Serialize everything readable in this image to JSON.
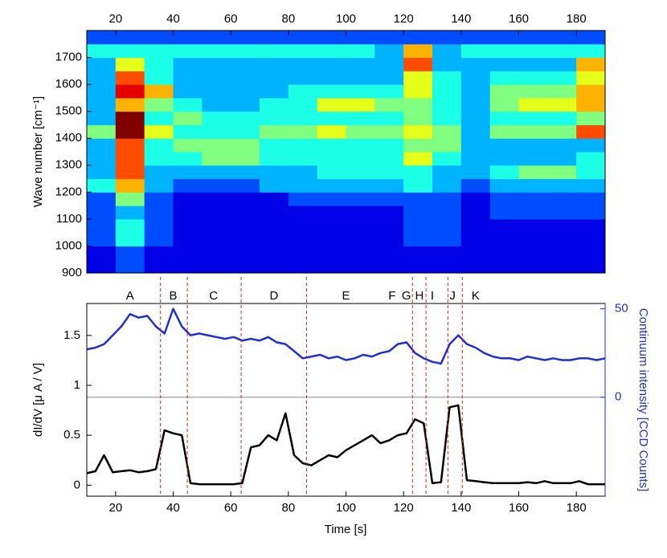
{
  "chart_data": [
    {
      "type": "heatmap",
      "ylabel": "Wave number [cm⁻¹]",
      "colormap": "jet",
      "zlim": [
        0,
        10
      ],
      "xlim": [
        10,
        190
      ],
      "ylim": [
        900,
        1800
      ],
      "xticks": [
        20,
        40,
        60,
        80,
        100,
        120,
        140,
        160,
        180
      ],
      "yticks": [
        900,
        1000,
        1100,
        1200,
        1300,
        1400,
        1500,
        1600,
        1700
      ],
      "xbins": [
        10,
        20,
        30,
        40,
        50,
        60,
        70,
        80,
        90,
        100,
        110,
        120,
        130,
        140,
        150,
        160,
        170,
        180,
        190
      ],
      "ybins": [
        900,
        950,
        1000,
        1050,
        1100,
        1150,
        1200,
        1250,
        1300,
        1350,
        1400,
        1450,
        1500,
        1550,
        1600,
        1650,
        1700,
        1750,
        1800
      ],
      "z": [
        [
          1,
          2,
          1,
          1,
          1,
          1,
          1,
          1,
          1,
          1,
          1,
          1,
          1,
          1,
          1,
          1,
          1,
          1
        ],
        [
          1,
          2,
          1,
          1,
          1,
          1,
          1,
          1,
          1,
          1,
          1,
          1,
          1,
          1,
          1,
          1,
          1,
          1
        ],
        [
          2,
          4,
          2,
          1,
          1,
          1,
          1,
          1,
          1,
          1,
          1,
          2,
          2,
          1,
          1,
          1,
          1,
          1
        ],
        [
          2,
          4,
          2,
          1,
          1,
          1,
          1,
          1,
          1,
          1,
          1,
          2,
          2,
          1,
          1,
          1,
          1,
          1
        ],
        [
          2,
          3,
          2,
          1,
          1,
          1,
          1,
          1,
          1,
          1,
          1,
          2,
          2,
          1,
          2,
          2,
          2,
          2
        ],
        [
          2,
          5,
          2,
          1,
          1,
          1,
          1,
          2,
          2,
          2,
          2,
          2,
          2,
          1,
          2,
          2,
          2,
          2
        ],
        [
          4,
          7,
          3,
          2,
          2,
          2,
          3,
          3,
          3,
          3,
          3,
          4,
          3,
          2,
          3,
          3,
          3,
          3
        ],
        [
          3,
          8,
          3,
          3,
          3,
          3,
          3,
          3,
          4,
          4,
          4,
          4,
          3,
          3,
          4,
          5,
          5,
          4
        ],
        [
          3,
          8,
          4,
          4,
          5,
          5,
          4,
          4,
          4,
          4,
          4,
          6,
          4,
          3,
          3,
          3,
          3,
          4
        ],
        [
          3,
          8,
          4,
          5,
          5,
          5,
          4,
          4,
          4,
          4,
          4,
          5,
          5,
          3,
          3,
          3,
          3,
          3
        ],
        [
          5,
          10,
          6,
          4,
          4,
          4,
          5,
          5,
          6,
          5,
          5,
          6,
          5,
          3,
          5,
          5,
          5,
          8
        ],
        [
          3,
          10,
          4,
          5,
          4,
          4,
          4,
          4,
          4,
          4,
          4,
          5,
          4,
          3,
          4,
          4,
          4,
          5
        ],
        [
          3,
          7,
          5,
          4,
          3,
          3,
          4,
          4,
          6,
          6,
          5,
          5,
          4,
          3,
          5,
          6,
          6,
          7
        ],
        [
          3,
          9,
          7,
          3,
          3,
          3,
          3,
          4,
          4,
          4,
          4,
          6,
          4,
          3,
          5,
          5,
          5,
          7
        ],
        [
          3,
          8,
          4,
          3,
          3,
          3,
          3,
          3,
          3,
          3,
          3,
          6,
          4,
          3,
          4,
          4,
          4,
          6
        ],
        [
          3,
          6,
          4,
          3,
          3,
          3,
          3,
          3,
          3,
          3,
          3,
          8,
          3,
          3,
          3,
          3,
          3,
          7
        ],
        [
          4,
          4,
          4,
          4,
          4,
          4,
          4,
          4,
          4,
          4,
          3,
          7,
          3,
          4,
          4,
          4,
          4,
          4
        ],
        [
          2,
          2,
          2,
          2,
          2,
          2,
          2,
          2,
          2,
          2,
          2,
          2,
          2,
          2,
          2,
          2,
          2,
          2
        ]
      ]
    },
    {
      "type": "line",
      "xlabel": "Time [s]",
      "ylabel": "dI/dV [μ A / V]",
      "y2label": "Continuum intensity [CCD Counts]",
      "xlim": [
        10,
        190
      ],
      "ylim": [
        -0.11,
        1.82
      ],
      "y2lim": [
        -56,
        53
      ],
      "xticks": [
        20,
        40,
        60,
        80,
        100,
        120,
        140,
        160,
        180
      ],
      "yticks": [
        0,
        0.5,
        1,
        1.5
      ],
      "y2ticks": [
        0,
        50
      ],
      "regions": [
        {
          "label": "A",
          "x": 25
        },
        {
          "label": "B",
          "x": 40
        },
        {
          "label": "C",
          "x": 54
        },
        {
          "label": "D",
          "x": 75
        },
        {
          "label": "E",
          "x": 100
        },
        {
          "label": "F",
          "x": 116
        },
        {
          "label": "G",
          "x": 121
        },
        {
          "label": "H",
          "x": 125.5
        },
        {
          "label": "I",
          "x": 130
        },
        {
          "label": "J",
          "x": 137
        },
        {
          "label": "K",
          "x": 145
        }
      ],
      "boundaries": [
        35.6,
        44.9,
        63.6,
        86.3,
        123.1,
        127.8,
        135.4,
        140.4
      ],
      "boundary_color": "#e02020",
      "x": [
        10,
        13,
        16,
        19,
        22,
        25,
        28,
        31,
        34,
        37,
        40,
        43,
        46,
        49,
        52,
        55,
        58,
        61,
        64,
        67,
        70,
        73,
        76,
        79,
        82,
        85,
        88,
        91,
        94,
        97,
        100,
        103,
        106,
        109,
        112,
        115,
        118,
        121,
        124,
        127,
        130,
        133,
        136,
        139,
        142,
        145,
        148,
        151,
        154,
        157,
        160,
        163,
        166,
        169,
        172,
        175,
        178,
        181,
        184,
        187,
        190
      ],
      "series": [
        {
          "name": "dI/dV",
          "color": "#000000",
          "values": [
            0.12,
            0.14,
            0.3,
            0.13,
            0.14,
            0.15,
            0.13,
            0.14,
            0.16,
            0.55,
            0.52,
            0.5,
            0.02,
            0.01,
            0.01,
            0.01,
            0.01,
            0.01,
            0.02,
            0.38,
            0.4,
            0.5,
            0.45,
            0.72,
            0.3,
            0.22,
            0.2,
            0.25,
            0.3,
            0.28,
            0.35,
            0.4,
            0.45,
            0.5,
            0.42,
            0.45,
            0.5,
            0.52,
            0.66,
            0.62,
            0.02,
            0.03,
            0.78,
            0.8,
            0.05,
            0.04,
            0.03,
            0.02,
            0.02,
            0.02,
            0.02,
            0.03,
            0.02,
            0.04,
            0.02,
            0.02,
            0.02,
            0.04,
            0.01,
            0.01,
            0.01
          ]
        },
        {
          "name": "Continuum intensity",
          "color": "#1f2fd6",
          "axis": "y2",
          "values": [
            27,
            28,
            30,
            35,
            40,
            47,
            45,
            46,
            40,
            36,
            50,
            40,
            35,
            36,
            35,
            34,
            33,
            34,
            32,
            33,
            32,
            34,
            31,
            30,
            26,
            22,
            23,
            24,
            22,
            23,
            21,
            22,
            24,
            23,
            25,
            26,
            30,
            31,
            25,
            22,
            20,
            19,
            30,
            35,
            30,
            28,
            25,
            23,
            22,
            22,
            21,
            23,
            22,
            21,
            22,
            21,
            21,
            22,
            22,
            21,
            22
          ]
        }
      ]
    }
  ]
}
